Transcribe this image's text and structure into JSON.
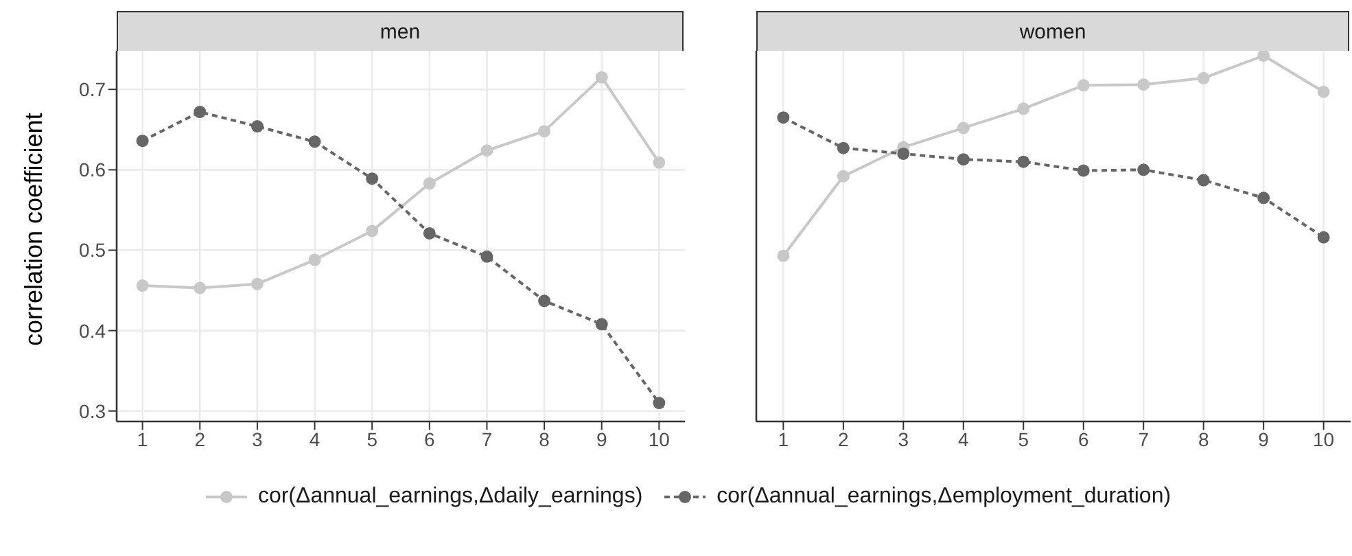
{
  "chart_data": [
    {
      "type": "line",
      "title": "men",
      "ylabel": "correlation coefficient",
      "x": [
        1,
        2,
        3,
        4,
        5,
        6,
        7,
        8,
        9,
        10
      ],
      "xlim": [
        0.55,
        10.45
      ],
      "xticks": [
        1,
        2,
        3,
        4,
        5,
        6,
        7,
        8,
        9,
        10
      ],
      "ylim": [
        0.287,
        0.748
      ],
      "yticks": [
        0.3,
        0.4,
        0.5,
        0.6,
        0.7
      ],
      "grid": true,
      "legend": "bottom",
      "marker": "circle",
      "series": [
        {
          "name": "cor(Δannual_earnings,Δdaily_earnings)",
          "color": "#c8c8c8",
          "line_style": "solid",
          "values": [
            0.456,
            0.453,
            0.458,
            0.488,
            0.524,
            0.583,
            0.624,
            0.648,
            0.715,
            0.609
          ]
        },
        {
          "name": "cor(Δannual_earnings,Δemployment_duration)",
          "color": "#666666",
          "line_style": "dashed",
          "values": [
            0.636,
            0.672,
            0.654,
            0.635,
            0.589,
            0.521,
            0.492,
            0.437,
            0.408,
            0.31
          ]
        }
      ]
    },
    {
      "type": "line",
      "title": "women",
      "x": [
        1,
        2,
        3,
        4,
        5,
        6,
        7,
        8,
        9,
        10
      ],
      "xlim": [
        0.55,
        10.45
      ],
      "xticks": [
        1,
        2,
        3,
        4,
        5,
        6,
        7,
        8,
        9,
        10
      ],
      "ylim": [
        0.287,
        0.748
      ],
      "yticks": [
        0.3,
        0.4,
        0.5,
        0.6,
        0.7
      ],
      "tick_labels": "x",
      "grid": true,
      "marker": "circle",
      "series": [
        {
          "color": "#c8c8c8",
          "line_style": "solid",
          "values": [
            0.493,
            0.592,
            0.628,
            0.652,
            0.676,
            0.705,
            0.706,
            0.714,
            0.742,
            0.697
          ]
        },
        {
          "color": "#666666",
          "line_style": "dashed",
          "values": [
            0.665,
            0.627,
            0.62,
            0.613,
            0.61,
            0.599,
            0.6,
            0.587,
            0.565,
            0.516
          ]
        }
      ]
    }
  ]
}
